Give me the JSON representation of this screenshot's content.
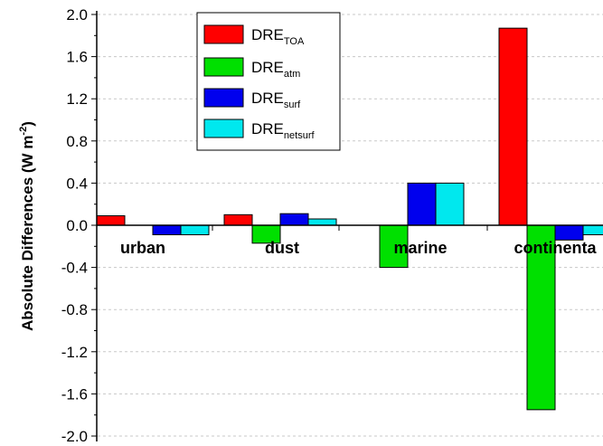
{
  "chart_data": {
    "type": "bar",
    "categories": [
      "urban",
      "dust",
      "marine",
      "continental"
    ],
    "category_label_visible": [
      "urban",
      "dust",
      "marine",
      "continenta"
    ],
    "series": [
      {
        "name_base": "DRE",
        "name_sub": "TOA",
        "color": "#ff0000",
        "values": [
          0.09,
          0.1,
          0.0,
          1.87
        ]
      },
      {
        "name_base": "DRE",
        "name_sub": "atm",
        "color": "#00e000",
        "values": [
          0.0,
          -0.17,
          -0.4,
          -1.75
        ]
      },
      {
        "name_base": "DRE",
        "name_sub": "surf",
        "color": "#0000ee",
        "values": [
          -0.09,
          0.11,
          0.4,
          -0.14
        ]
      },
      {
        "name_base": "DRE",
        "name_sub": "netsurf",
        "color": "#00e8ee",
        "values": [
          -0.09,
          0.06,
          0.4,
          -0.09
        ]
      }
    ],
    "ylabel": "Absolute Differences (W m-2)",
    "ylabel_main": "Absolute Differences (W m",
    "ylabel_sup": "-2",
    "ylabel_close": ")",
    "ylim": [
      -2.0,
      2.0
    ],
    "yticks": [
      "2.0",
      "1.6",
      "1.2",
      "0.8",
      "0.4",
      "0.0",
      "-0.4",
      "-0.8",
      "-1.2",
      "-1.6",
      "-2.0"
    ],
    "ytick_values": [
      2.0,
      1.6,
      1.2,
      0.8,
      0.4,
      0.0,
      -0.4,
      -0.8,
      -1.2,
      -1.6,
      -2.0
    ],
    "grid": true,
    "legend_position": "top-left"
  }
}
